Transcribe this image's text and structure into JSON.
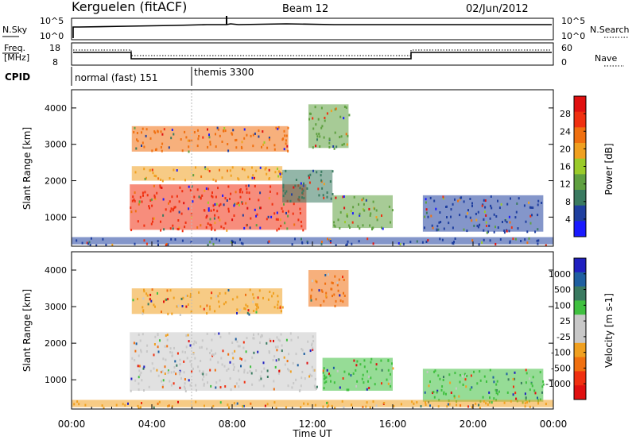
{
  "header": {
    "station": "Kerguelen (fitACF)",
    "beam": "Beam 12",
    "date": "02/Jun/2012"
  },
  "panels": {
    "nsky": {
      "left_label": "N.Sky",
      "right_label": "N.Search",
      "left_ticks": [
        "10^5",
        "10^0"
      ],
      "right_ticks": [
        "10^5",
        "10^0"
      ]
    },
    "freq": {
      "left_label_1": "Freq.",
      "left_label_2": "[MHz]",
      "right_label": "Nave",
      "left_ticks": [
        "18",
        "8"
      ],
      "right_ticks": [
        "60",
        "0"
      ]
    },
    "cpid": {
      "label": "CPID",
      "segments": [
        "normal (fast) 151",
        "themis 3300"
      ]
    }
  },
  "colors": {
    "power": [
      "#1a1aff",
      "#1f3f9f",
      "#3a7a60",
      "#5fa040",
      "#9acb2a",
      "#f0a020",
      "#f07010",
      "#f03010",
      "#e01010"
    ],
    "velocity": [
      "#e01010",
      "#f03010",
      "#f07010",
      "#f0a020",
      "#c8c8c8",
      "#c8c8c8",
      "#40c040",
      "#3a7a60",
      "#1f5fa0",
      "#2020c0"
    ]
  },
  "chart_data": [
    {
      "type": "heatmap",
      "name": "power",
      "xlabel": "",
      "ylabel": "Slant Range [km]",
      "ylim": [
        200,
        4500
      ],
      "y_ticks": [
        "1000",
        "2000",
        "3000",
        "4000"
      ],
      "colorbar_label": "Power [dB]",
      "colorbar_ticks": [
        "28",
        "24",
        "20",
        "16",
        "12",
        "8",
        "4"
      ],
      "regions": [
        {
          "t0": 2.9,
          "t1": 11.7,
          "r0": 650,
          "r1": 1900,
          "value": "high",
          "color": "#f03010"
        },
        {
          "t0": 3.0,
          "t1": 10.5,
          "r0": 2000,
          "r1": 2400,
          "value": "mid",
          "color": "#f0a020"
        },
        {
          "t0": 3.0,
          "t1": 10.8,
          "r0": 2800,
          "r1": 3500,
          "value": "mid",
          "color": "#f07010"
        },
        {
          "t0": 11.8,
          "t1": 13.8,
          "r0": 2900,
          "r1": 4100,
          "value": "mid",
          "color": "#5fa040"
        },
        {
          "t0": 10.5,
          "t1": 13.0,
          "r0": 1400,
          "r1": 2300,
          "value": "low",
          "color": "#3a7a60"
        },
        {
          "t0": 13.0,
          "t1": 16.0,
          "r0": 700,
          "r1": 1600,
          "value": "low",
          "color": "#5fa040"
        },
        {
          "t0": 17.5,
          "t1": 23.5,
          "r0": 600,
          "r1": 1600,
          "value": "low",
          "color": "#1f3f9f"
        },
        {
          "t0": 0.0,
          "t1": 24.0,
          "r0": 250,
          "r1": 450,
          "value": "low",
          "color": "#1f3f9f"
        }
      ]
    },
    {
      "type": "heatmap",
      "name": "velocity",
      "xlabel": "Time UT",
      "ylabel": "Slant Range [km]",
      "ylim": [
        200,
        4500
      ],
      "y_ticks": [
        "1000",
        "2000",
        "3000",
        "4000"
      ],
      "colorbar_label": "Velocity [m s-1]",
      "colorbar_ticks": [
        "1000",
        "500",
        "100",
        "25",
        "-25",
        "-100",
        "-500",
        "-1000"
      ],
      "x_ticks": [
        "00:00",
        "04:00",
        "08:00",
        "12:00",
        "16:00",
        "20:00",
        "00:00"
      ],
      "regions": [
        {
          "t0": 2.9,
          "t1": 12.2,
          "r0": 700,
          "r1": 2300,
          "value": "near zero",
          "color": "#c8c8c8"
        },
        {
          "t0": 3.0,
          "t1": 10.5,
          "r0": 2800,
          "r1": 3500,
          "value": "negative",
          "color": "#f0a020"
        },
        {
          "t0": 11.8,
          "t1": 13.8,
          "r0": 3000,
          "r1": 4000,
          "value": "negative",
          "color": "#f07010"
        },
        {
          "t0": 12.5,
          "t1": 16.0,
          "r0": 700,
          "r1": 1600,
          "value": "positive",
          "color": "#40c040"
        },
        {
          "t0": 17.5,
          "t1": 23.5,
          "r0": 400,
          "r1": 1300,
          "value": "positive",
          "color": "#40c040"
        },
        {
          "t0": 0.0,
          "t1": 24.0,
          "r0": 250,
          "r1": 450,
          "value": "negative",
          "color": "#f0a020"
        }
      ]
    }
  ]
}
